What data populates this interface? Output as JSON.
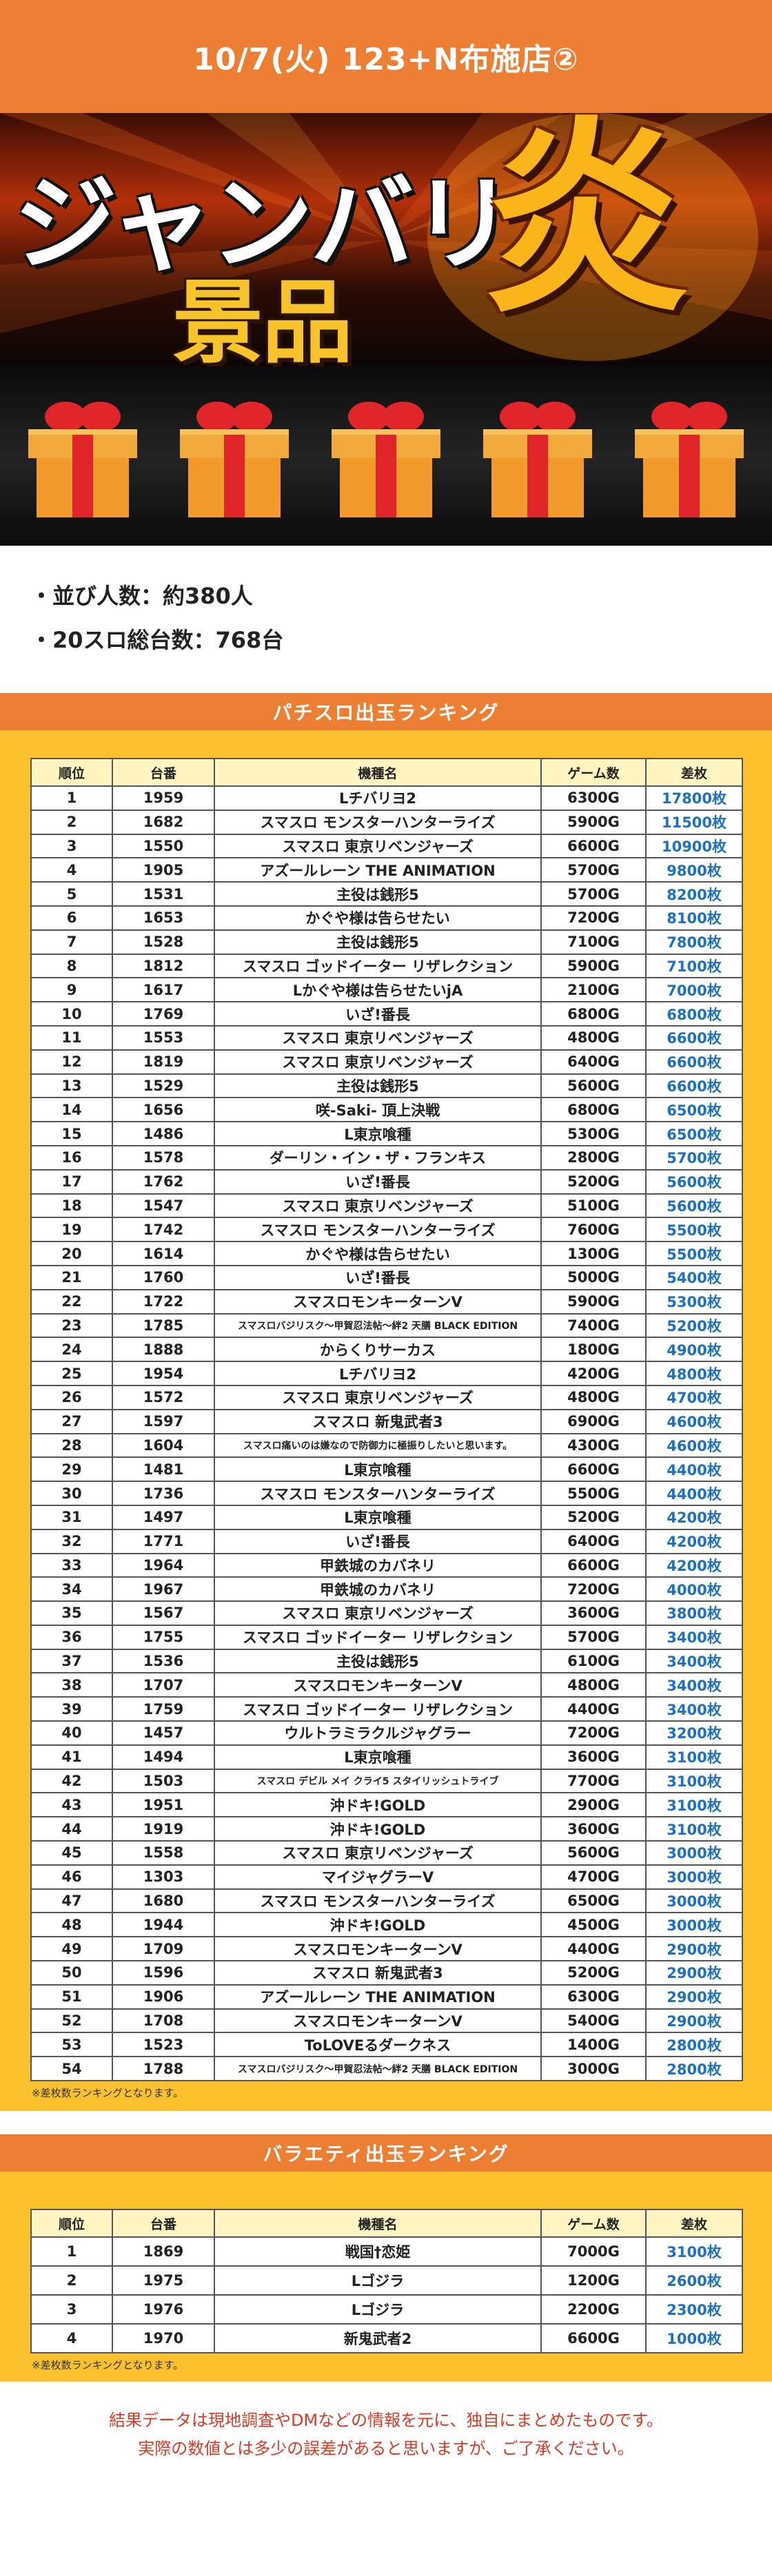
{
  "header": {
    "title": "10/7(火) 123+N布施店②"
  },
  "hero": {
    "line1": "ジャンバリ",
    "line2": "景品",
    "kanji": "炎"
  },
  "info": {
    "line1": "・並び人数：約380人",
    "line2": "・20スロ総台数：768台"
  },
  "colors": {
    "orange": "#ec7f33",
    "yellow": "#fbc02d",
    "blue": "#1f6fc2",
    "red": "#d33c2a"
  },
  "pachislot": {
    "heading": "パチスロ出玉ランキング",
    "columns": [
      "順位",
      "台番",
      "機種名",
      "ゲーム数",
      "差枚"
    ],
    "rows": [
      [
        "1",
        "1959",
        "Lチバリヨ2",
        "6300G",
        "17800枚"
      ],
      [
        "2",
        "1682",
        "スマスロ モンスターハンターライズ",
        "5900G",
        "11500枚"
      ],
      [
        "3",
        "1550",
        "スマスロ 東京リベンジャーズ",
        "6600G",
        "10900枚"
      ],
      [
        "4",
        "1905",
        "アズールレーン THE ANIMATION",
        "5700G",
        "9800枚"
      ],
      [
        "5",
        "1531",
        "主役は銭形5",
        "5700G",
        "8200枚"
      ],
      [
        "6",
        "1653",
        "かぐや様は告らせたい",
        "7200G",
        "8100枚"
      ],
      [
        "7",
        "1528",
        "主役は銭形5",
        "7100G",
        "7800枚"
      ],
      [
        "8",
        "1812",
        "スマスロ ゴッドイーター リザレクション",
        "5900G",
        "7100枚"
      ],
      [
        "9",
        "1617",
        "Lかぐや様は告らせたいjA",
        "2100G",
        "7000枚"
      ],
      [
        "10",
        "1769",
        "いざ!番長",
        "6800G",
        "6800枚"
      ],
      [
        "11",
        "1553",
        "スマスロ 東京リベンジャーズ",
        "4800G",
        "6600枚"
      ],
      [
        "12",
        "1819",
        "スマスロ 東京リベンジャーズ",
        "6400G",
        "6600枚"
      ],
      [
        "13",
        "1529",
        "主役は銭形5",
        "5600G",
        "6600枚"
      ],
      [
        "14",
        "1656",
        "咲-Saki- 頂上決戦",
        "6800G",
        "6500枚"
      ],
      [
        "15",
        "1486",
        "L東京喰種",
        "5300G",
        "6500枚"
      ],
      [
        "16",
        "1578",
        "ダーリン・イン・ザ・フランキス",
        "2800G",
        "5700枚"
      ],
      [
        "17",
        "1762",
        "いざ!番長",
        "5200G",
        "5600枚"
      ],
      [
        "18",
        "1547",
        "スマスロ 東京リベンジャーズ",
        "5100G",
        "5600枚"
      ],
      [
        "19",
        "1742",
        "スマスロ モンスターハンターライズ",
        "7600G",
        "5500枚"
      ],
      [
        "20",
        "1614",
        "かぐや様は告らせたい",
        "1300G",
        "5500枚"
      ],
      [
        "21",
        "1760",
        "いざ!番長",
        "5000G",
        "5400枚"
      ],
      [
        "22",
        "1722",
        "スマスロモンキーターンV",
        "5900G",
        "5300枚"
      ],
      [
        "23",
        "1785",
        "スマスロバジリスク～甲賀忍法帖～絆2 天膳 BLACK EDITION",
        "7400G",
        "5200枚"
      ],
      [
        "24",
        "1888",
        "からくりサーカス",
        "1800G",
        "4900枚"
      ],
      [
        "25",
        "1954",
        "Lチバリヨ2",
        "4200G",
        "4800枚"
      ],
      [
        "26",
        "1572",
        "スマスロ 東京リベンジャーズ",
        "4800G",
        "4700枚"
      ],
      [
        "27",
        "1597",
        "スマスロ 新鬼武者3",
        "6900G",
        "4600枚"
      ],
      [
        "28",
        "1604",
        "スマスロ痛いのは嫌なので防御力に極振りしたいと思います。",
        "4300G",
        "4600枚"
      ],
      [
        "29",
        "1481",
        "L東京喰種",
        "6600G",
        "4400枚"
      ],
      [
        "30",
        "1736",
        "スマスロ モンスターハンターライズ",
        "5500G",
        "4400枚"
      ],
      [
        "31",
        "1497",
        "L東京喰種",
        "5200G",
        "4200枚"
      ],
      [
        "32",
        "1771",
        "いざ!番長",
        "6400G",
        "4200枚"
      ],
      [
        "33",
        "1964",
        "甲鉄城のカバネリ",
        "6600G",
        "4200枚"
      ],
      [
        "34",
        "1967",
        "甲鉄城のカバネリ",
        "7200G",
        "4000枚"
      ],
      [
        "35",
        "1567",
        "スマスロ 東京リベンジャーズ",
        "3600G",
        "3800枚"
      ],
      [
        "36",
        "1755",
        "スマスロ ゴッドイーター リザレクション",
        "5700G",
        "3400枚"
      ],
      [
        "37",
        "1536",
        "主役は銭形5",
        "6100G",
        "3400枚"
      ],
      [
        "38",
        "1707",
        "スマスロモンキーターンV",
        "4800G",
        "3400枚"
      ],
      [
        "39",
        "1759",
        "スマスロ ゴッドイーター リザレクション",
        "4400G",
        "3400枚"
      ],
      [
        "40",
        "1457",
        "ウルトラミラクルジャグラー",
        "7200G",
        "3200枚"
      ],
      [
        "41",
        "1494",
        "L東京喰種",
        "3600G",
        "3100枚"
      ],
      [
        "42",
        "1503",
        "スマスロ デビル メイ クライ5 スタイリッシュトライブ",
        "7700G",
        "3100枚"
      ],
      [
        "43",
        "1951",
        "沖ドキ!GOLD",
        "2900G",
        "3100枚"
      ],
      [
        "44",
        "1919",
        "沖ドキ!GOLD",
        "3600G",
        "3100枚"
      ],
      [
        "45",
        "1558",
        "スマスロ 東京リベンジャーズ",
        "5600G",
        "3000枚"
      ],
      [
        "46",
        "1303",
        "マイジャグラーV",
        "4700G",
        "3000枚"
      ],
      [
        "47",
        "1680",
        "スマスロ モンスターハンターライズ",
        "6500G",
        "3000枚"
      ],
      [
        "48",
        "1944",
        "沖ドキ!GOLD",
        "4500G",
        "3000枚"
      ],
      [
        "49",
        "1709",
        "スマスロモンキーターンV",
        "4400G",
        "2900枚"
      ],
      [
        "50",
        "1596",
        "スマスロ 新鬼武者3",
        "5200G",
        "2900枚"
      ],
      [
        "51",
        "1906",
        "アズールレーン THE ANIMATION",
        "6300G",
        "2900枚"
      ],
      [
        "52",
        "1708",
        "スマスロモンキーターンV",
        "5400G",
        "2900枚"
      ],
      [
        "53",
        "1523",
        "ToLOVEるダークネス",
        "1400G",
        "2800枚"
      ],
      [
        "54",
        "1788",
        "スマスロバジリスク～甲賀忍法帖～絆2 天膳 BLACK EDITION",
        "3000G",
        "2800枚"
      ]
    ],
    "note": "※差枚数ランキングとなります。"
  },
  "variety": {
    "heading": "バラエティ出玉ランキング",
    "columns": [
      "順位",
      "台番",
      "機種名",
      "ゲーム数",
      "差枚"
    ],
    "rows": [
      [
        "1",
        "1869",
        "戦国†恋姫",
        "7000G",
        "3100枚"
      ],
      [
        "2",
        "1975",
        "Lゴジラ",
        "1200G",
        "2600枚"
      ],
      [
        "3",
        "1976",
        "Lゴジラ",
        "2200G",
        "2300枚"
      ],
      [
        "4",
        "1970",
        "新鬼武者2",
        "6600G",
        "1000枚"
      ]
    ],
    "note": "※差枚数ランキングとなります。"
  },
  "disclaimer": {
    "line1": "結果データは現地調査やDMなどの情報を元に、独自にまとめたものです。",
    "line2": "実際の数値とは多少の誤差があると思いますが、ご了承ください。"
  }
}
